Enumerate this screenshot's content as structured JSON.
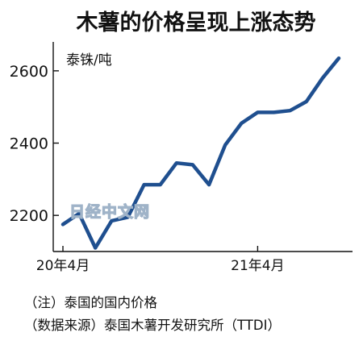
{
  "chart_data": {
    "type": "line",
    "title": "木薯的价格呈现上涨态势",
    "unit_label": "泰铢/吨",
    "ylim": [
      2100,
      2680
    ],
    "yticks": [
      2200,
      2400,
      2600
    ],
    "x_ticks": [
      {
        "label": "20年4月",
        "index": 0
      },
      {
        "label": "21年4月",
        "index": 12
      }
    ],
    "grid": false,
    "series": [
      {
        "color": "#1f4f8f",
        "values": [
          2175,
          2205,
          2110,
          2185,
          2195,
          2285,
          2285,
          2345,
          2340,
          2285,
          2395,
          2455,
          2485,
          2485,
          2490,
          2515,
          2580,
          2635
        ]
      }
    ]
  },
  "notes": {
    "line1": "（注）泰国的国内价格",
    "line2": "（数据来源）泰国木薯开发研究所（TTDI）"
  },
  "watermark": "日经中文网"
}
